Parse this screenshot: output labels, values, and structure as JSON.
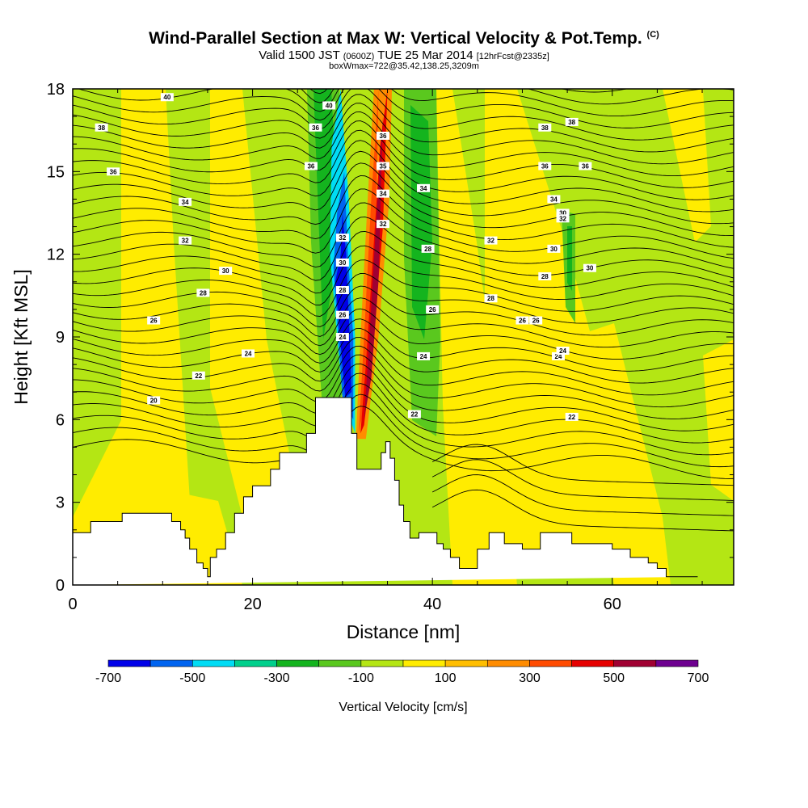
{
  "chart_data": {
    "type": "contour",
    "title": "Wind-Parallel Section at Max W: Vertical Velocity & Pot.Temp.",
    "title_suffix": "(C)",
    "subtitle_prefix": "Valid 1500 JST",
    "subtitle_small1": "(0600Z)",
    "subtitle_mid": "TUE 25 Mar 2014",
    "subtitle_small2": "[12hrFcst@2335z]",
    "subtitle2": "boxWmax=722@35.42,138.25,3209m",
    "xlabel": "Distance [nm]",
    "ylabel": "Height [Kft MSL]",
    "xlim": [
      0,
      73.5
    ],
    "ylim": [
      0,
      18
    ],
    "x_ticks": [
      "0",
      "20",
      "40",
      "60"
    ],
    "y_ticks": [
      "0",
      "3",
      "6",
      "9",
      "12",
      "15",
      "18"
    ],
    "colorbar_label": "Vertical Velocity [cm/s]",
    "colorbar_tick_labels": [
      "-700",
      "-500",
      "-300",
      "-100",
      "100",
      "300",
      "500",
      "700"
    ],
    "colorbar_colors": [
      "#0000e8",
      "#0064f0",
      "#00dcf5",
      "#00d08c",
      "#14b41e",
      "#5ac81e",
      "#b4e614",
      "#ffec00",
      "#ffbe00",
      "#ff8c00",
      "#ff4b00",
      "#e60000",
      "#a00032",
      "#6e0090"
    ],
    "terrain_profile": {
      "x": [
        0,
        2,
        2,
        5.5,
        5.5,
        11,
        11,
        12,
        12,
        12.5,
        12.5,
        13,
        13,
        13.8,
        13.8,
        14.5,
        14.5,
        15,
        15,
        15.3,
        15.3,
        16,
        16,
        17,
        17,
        18,
        18,
        19,
        19,
        20,
        20,
        22,
        22,
        23,
        23,
        26,
        26,
        27,
        27,
        31,
        31,
        31.6,
        31.6,
        34.3,
        34.3,
        34.8,
        34.8,
        35.3,
        35.3,
        35.8,
        35.8,
        36.3,
        36.3,
        36.8,
        36.8,
        37.5,
        37.5,
        38.5,
        38.5,
        40.5,
        40.5,
        41.2,
        41.2,
        42,
        42,
        43,
        43,
        45,
        45,
        46.3,
        46.3,
        48,
        48,
        50,
        50,
        52,
        52,
        55.5,
        55.5,
        60,
        60,
        62,
        62,
        64,
        64,
        65,
        65,
        66,
        66,
        69.5,
        69.5,
        73.5
      ],
      "h": [
        1.9,
        1.9,
        2.3,
        2.3,
        2.6,
        2.6,
        2.3,
        2.3,
        2.0,
        2.0,
        1.7,
        1.7,
        1.3,
        1.3,
        0.8,
        0.8,
        0.6,
        0.6,
        0.3,
        0.3,
        1.0,
        1.0,
        1.3,
        1.3,
        1.9,
        1.9,
        2.6,
        2.6,
        3.2,
        3.2,
        3.6,
        3.6,
        4.2,
        4.2,
        4.8,
        4.8,
        5.5,
        5.5,
        6.8,
        6.8,
        5.5,
        5.5,
        4.2,
        4.2,
        4.8,
        4.8,
        5.2,
        5.2,
        4.6,
        4.6,
        3.8,
        3.8,
        2.9,
        2.9,
        2.3,
        2.3,
        1.7,
        1.7,
        1.9,
        1.9,
        1.5,
        1.5,
        1.3,
        1.3,
        1.0,
        1.0,
        0.6,
        0.6,
        1.3,
        1.3,
        1.9,
        1.9,
        1.5,
        1.5,
        1.3,
        1.3,
        1.9,
        1.9,
        1.5,
        1.5,
        1.3,
        1.3,
        1.0,
        1.0,
        0.8,
        0.8,
        0.6,
        0.6,
        0.3,
        0.3
      ]
    },
    "w_field": [
      {
        "name": "-700",
        "x": [
          29.2,
          29.8,
          30.0,
          30.4,
          30.8,
          31.0,
          30.3
        ],
        "h": [
          11.0,
          12.0,
          13.5,
          12.0,
          9.0,
          7.0,
          6.8
        ]
      },
      {
        "name": "-500",
        "x": [
          29.0,
          29.4,
          30.2,
          30.6,
          31.2,
          31.2,
          30.0
        ],
        "h": [
          11.5,
          13.5,
          15.0,
          12.0,
          9.0,
          6.0,
          6.8
        ]
      },
      {
        "name": "-300",
        "x": [
          28.6,
          28.8,
          29.8,
          30.7,
          31.4,
          31.4,
          30.0
        ],
        "h": [
          12.0,
          16.0,
          18.0,
          14.0,
          9.0,
          5.5,
          6.8
        ]
      },
      {
        "name": "300",
        "x": [
          31.8,
          32.4,
          33.2,
          34.0,
          33.6,
          32.4,
          31.8
        ],
        "h": [
          5.5,
          9.0,
          14.0,
          18.0,
          10.5,
          6.5,
          5.5
        ]
      },
      {
        "name": "500",
        "x": [
          32.0,
          32.6,
          33.4,
          34.2,
          35.0,
          34.5,
          33.2,
          32.4
        ],
        "h": [
          5.5,
          8.0,
          12.0,
          16.0,
          18.0,
          13.0,
          8.0,
          5.8
        ]
      },
      {
        "name": "700",
        "x": [
          32.4,
          33.0,
          33.8,
          34.5,
          34.0,
          33.2
        ],
        "h": [
          6.0,
          9.0,
          13.5,
          17.0,
          11.0,
          7.5
        ]
      }
    ],
    "theta_label_values": [
      20,
      22,
      24,
      26,
      28,
      30,
      32,
      34,
      36,
      38,
      40
    ]
  }
}
